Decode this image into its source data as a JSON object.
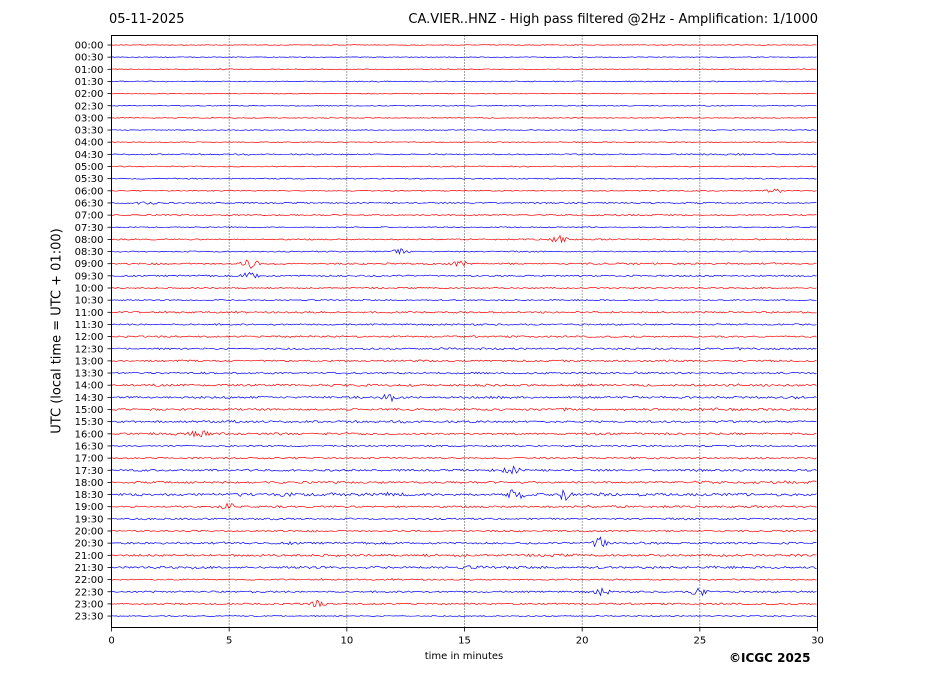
{
  "header": {
    "date": "05-11-2025",
    "title": "CA.VIER..HNZ - High pass filtered @2Hz - Amplification: 1/1000"
  },
  "footer": {
    "copyright": "©ICGC 2025"
  },
  "chart_data": {
    "type": "line",
    "title": "CA.VIER..HNZ - High pass filtered @2Hz - Amplification: 1/1000",
    "xlabel": "time in minutes",
    "ylabel": "UTC (local time = UTC + 01:00)",
    "xlim": [
      0,
      30
    ],
    "xticks": [
      "0",
      "5",
      "10",
      "15",
      "20",
      "25",
      "30"
    ],
    "vertical_gridlines_at": [
      5,
      10,
      15,
      20,
      25
    ],
    "colors": {
      "even": "#ff0000",
      "odd": "#0000ff"
    },
    "rows": [
      "00:00",
      "00:30",
      "01:00",
      "01:30",
      "02:00",
      "02:30",
      "03:00",
      "03:30",
      "04:00",
      "04:30",
      "05:00",
      "05:30",
      "06:00",
      "06:30",
      "07:00",
      "07:30",
      "08:00",
      "08:30",
      "09:00",
      "09:30",
      "10:00",
      "10:30",
      "11:00",
      "11:30",
      "12:00",
      "12:30",
      "13:00",
      "13:30",
      "14:00",
      "14:30",
      "15:00",
      "15:30",
      "16:00",
      "16:30",
      "17:00",
      "17:30",
      "18:00",
      "18:30",
      "19:00",
      "19:30",
      "20:00",
      "20:30",
      "21:00",
      "21:30",
      "22:00",
      "22:30",
      "23:00",
      "23:30"
    ],
    "activity_level": [
      0.05,
      0.05,
      0.15,
      0.18,
      0.1,
      0.12,
      0.08,
      0.1,
      0.12,
      0.3,
      0.2,
      0.25,
      0.15,
      0.3,
      0.3,
      0.2,
      0.3,
      0.25,
      0.45,
      0.45,
      0.3,
      0.3,
      0.45,
      0.4,
      0.45,
      0.5,
      0.5,
      0.5,
      0.65,
      0.6,
      0.6,
      0.65,
      0.6,
      0.4,
      0.45,
      0.55,
      0.6,
      0.9,
      0.55,
      0.45,
      0.45,
      0.6,
      0.7,
      0.75,
      0.35,
      0.45,
      0.45,
      0.2
    ],
    "events": [
      {
        "row": "09:00",
        "minute": 5.9,
        "amplitude": 0.6
      },
      {
        "row": "09:30",
        "minute": 5.9,
        "amplitude": 0.5
      },
      {
        "row": "08:00",
        "minute": 19.0,
        "amplitude": 0.5
      },
      {
        "row": "14:30",
        "minute": 11.8,
        "amplitude": 0.5
      },
      {
        "row": "18:30",
        "minute": 17.2,
        "amplitude": 0.8
      },
      {
        "row": "18:30",
        "minute": 19.3,
        "amplitude": 0.7
      },
      {
        "row": "19:00",
        "minute": 5.0,
        "amplitude": 0.5
      },
      {
        "row": "20:30",
        "minute": 20.8,
        "amplitude": 0.9
      },
      {
        "row": "22:30",
        "minute": 25.0,
        "amplitude": 0.6
      },
      {
        "row": "22:30",
        "minute": 20.8,
        "amplitude": 0.5
      },
      {
        "row": "16:00",
        "minute": 3.8,
        "amplitude": 0.5
      },
      {
        "row": "17:30",
        "minute": 17.0,
        "amplitude": 0.5
      },
      {
        "row": "09:00",
        "minute": 14.8,
        "amplitude": 0.4
      },
      {
        "row": "23:00",
        "minute": 8.7,
        "amplitude": 0.4
      },
      {
        "row": "06:30",
        "minute": 1.5,
        "amplitude": 0.3
      },
      {
        "row": "08:30",
        "minute": 12.3,
        "amplitude": 0.3
      },
      {
        "row": "06:00",
        "minute": 28.2,
        "amplitude": 0.3
      }
    ]
  }
}
